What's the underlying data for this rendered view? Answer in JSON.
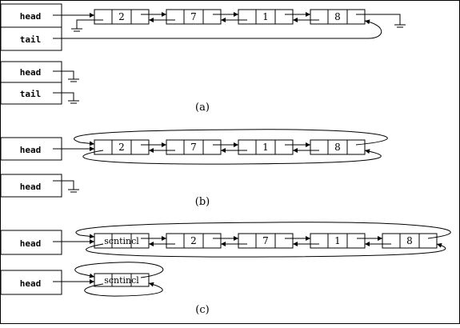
{
  "panels": [
    {
      "caption": "(a)",
      "list_nonempty": {
        "head_label": "head",
        "tail_label": "tail",
        "nodes": [
          "2",
          "7",
          "1",
          "8"
        ]
      },
      "list_empty": {
        "head_label": "head",
        "tail_label": "tail"
      }
    },
    {
      "caption": "(b)",
      "list_nonempty": {
        "head_label": "head",
        "nodes": [
          "2",
          "7",
          "1",
          "8"
        ]
      },
      "list_empty": {
        "head_label": "head"
      }
    },
    {
      "caption": "(c)",
      "list_nonempty": {
        "head_label": "head",
        "nodes": [
          "scntincl",
          "2",
          "7",
          "1",
          "8"
        ]
      },
      "list_empty": {
        "head_label": "head",
        "nodes": [
          "scntincl"
        ]
      }
    }
  ]
}
